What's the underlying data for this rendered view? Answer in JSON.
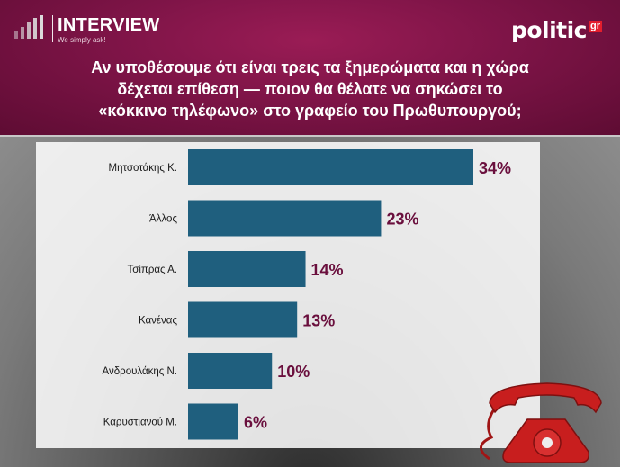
{
  "header": {
    "logo_name": "INTERVIEW",
    "logo_tagline": "We simply ask!",
    "brand_name": "politic",
    "brand_suffix": "gr",
    "title_lines": [
      "Αν υποθέσουμε ότι είναι τρεις τα ξημερώματα και η χώρα",
      "δέχεται επίθεση — ποιον θα θέλατε να σηκώσει το",
      "«κόκκινο τηλέφωνο» στο γραφείο του Πρωθυπουργού;"
    ]
  },
  "colors": {
    "header": "#7e1447",
    "bar": "#1f5f7e",
    "value_label": "#6a0f3d",
    "category_label": "#1a1a1a",
    "phone": "#c81e1e"
  },
  "icons": {
    "decoration": "red-telephone-icon",
    "logo": "signal-bars-icon"
  },
  "chart_data": {
    "type": "bar",
    "orientation": "horizontal",
    "categories": [
      "Μητσοτάκης Κ.",
      "Άλλος",
      "Τσίπρας Α.",
      "Κανένας",
      "Ανδρουλάκης Ν.",
      "Καρυστιανού Μ."
    ],
    "values": [
      34,
      23,
      14,
      13,
      10,
      6
    ],
    "value_labels": [
      "34%",
      "23%",
      "14%",
      "13%",
      "10%",
      "6%"
    ],
    "xlim": [
      0,
      34
    ],
    "grid": false,
    "legend": "none"
  }
}
